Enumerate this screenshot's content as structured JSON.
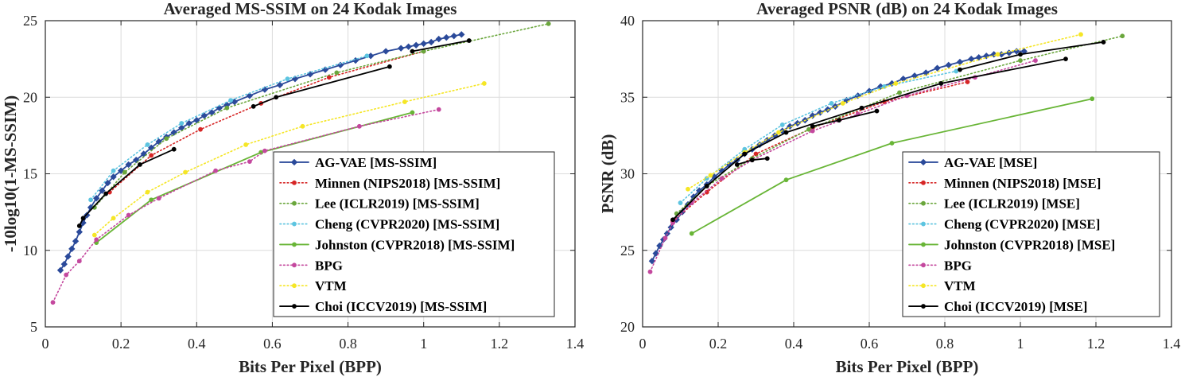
{
  "chart_data": [
    {
      "type": "line",
      "title": "Averaged MS-SSIM on 24 Kodak Images",
      "xlabel": "Bits Per Pixel (BPP)",
      "ylabel": "-10log10(1-MS-SSIM)",
      "xlim": [
        0,
        1.4
      ],
      "ylim": [
        5,
        25
      ],
      "xticks": [
        "0",
        "0.2",
        "0.4",
        "0.6",
        "0.8",
        "1",
        "1.2",
        "1.4"
      ],
      "yticks": [
        "5",
        "10",
        "15",
        "20",
        "25"
      ],
      "grid": true,
      "legend_position": "bottom-right",
      "series": [
        {
          "name": "AG-VAE [MS-SSIM]",
          "color": "#2b4a9a",
          "style": "solid",
          "marker": "diamond",
          "x": [
            0.04,
            0.05,
            0.06,
            0.07,
            0.08,
            0.09,
            0.1,
            0.11,
            0.12,
            0.135,
            0.15,
            0.165,
            0.18,
            0.2,
            0.22,
            0.24,
            0.26,
            0.28,
            0.3,
            0.32,
            0.34,
            0.36,
            0.38,
            0.4,
            0.42,
            0.44,
            0.46,
            0.48,
            0.5,
            0.54,
            0.58,
            0.62,
            0.66,
            0.7,
            0.74,
            0.78,
            0.82,
            0.86,
            0.9,
            0.94,
            0.96,
            0.98,
            1.0,
            1.02,
            1.04,
            1.06,
            1.08,
            1.1
          ],
          "y": [
            8.7,
            9.1,
            9.6,
            10.1,
            10.6,
            11.2,
            11.8,
            12.3,
            12.8,
            13.4,
            13.9,
            14.4,
            14.8,
            15.2,
            15.6,
            15.9,
            16.3,
            16.7,
            17.1,
            17.4,
            17.7,
            18.0,
            18.3,
            18.5,
            18.8,
            19.0,
            19.3,
            19.5,
            19.7,
            20.1,
            20.5,
            20.8,
            21.2,
            21.5,
            21.8,
            22.1,
            22.4,
            22.7,
            23.0,
            23.2,
            23.3,
            23.4,
            23.5,
            23.6,
            23.8,
            23.9,
            24.0,
            24.1
          ]
        },
        {
          "name": "Minnen (NIPS2018) [MS-SSIM]",
          "color": "#d62626",
          "style": "dotted",
          "marker": "circle",
          "x": [
            0.17,
            0.28,
            0.41,
            0.57,
            0.75,
            1.0
          ],
          "y": [
            13.8,
            16.2,
            17.9,
            19.6,
            21.3,
            23.0
          ]
        },
        {
          "name": "Lee (ICLR2019) [MS-SSIM]",
          "color": "#6aa63c",
          "style": "dotted",
          "marker": "circle",
          "x": [
            0.13,
            0.21,
            0.32,
            0.48,
            0.77,
            1.0,
            1.33
          ],
          "y": [
            12.8,
            15.1,
            17.3,
            19.3,
            21.6,
            23.0,
            24.8
          ]
        },
        {
          "name": "Cheng (CVPR2020) [MS-SSIM]",
          "color": "#5cc4e0",
          "style": "dotted",
          "marker": "circle",
          "x": [
            0.12,
            0.18,
            0.27,
            0.36,
            0.49,
            0.64,
            0.85
          ],
          "y": [
            13.3,
            15.2,
            16.9,
            18.3,
            19.8,
            21.2,
            22.7
          ]
        },
        {
          "name": "Johnston (CVPR2018) [MS-SSIM]",
          "color": "#68b536",
          "style": "solid",
          "marker": "circle",
          "x": [
            0.135,
            0.28,
            0.57,
            0.97
          ],
          "y": [
            10.5,
            13.3,
            16.4,
            19.0
          ]
        },
        {
          "name": "BPG",
          "color": "#c4489e",
          "style": "dotted",
          "marker": "circle",
          "x": [
            0.02,
            0.055,
            0.09,
            0.135,
            0.22,
            0.3,
            0.45,
            0.54,
            0.58,
            0.83,
            1.04
          ],
          "y": [
            6.6,
            8.4,
            9.3,
            10.7,
            12.3,
            13.4,
            15.2,
            15.8,
            16.5,
            18.1,
            19.2
          ]
        },
        {
          "name": "VTM",
          "color": "#f5e626",
          "style": "dotted",
          "marker": "circle",
          "x": [
            0.13,
            0.18,
            0.27,
            0.37,
            0.53,
            0.68,
            0.95,
            1.16
          ],
          "y": [
            11.0,
            12.1,
            13.8,
            15.1,
            16.9,
            18.1,
            19.7,
            20.9
          ]
        },
        {
          "name": "Choi (ICCV2019) [MS-SSIM]",
          "color": "#000000",
          "style": "solid",
          "marker": "circle",
          "x": [
            0.09,
            0.1,
            0.16,
            0.25,
            0.34
          ],
          "y": [
            11.6,
            12.1,
            13.7,
            15.6,
            16.6
          ]
        },
        {
          "name": "Choi (ICCV2019) [MS-SSIM]",
          "color": "#000000",
          "style": "solid",
          "marker": "circle",
          "x": [
            0.55,
            0.61,
            0.91
          ],
          "y": [
            19.4,
            20.0,
            22.0
          ]
        },
        {
          "name": "Choi (ICCV2019) [MS-SSIM]",
          "color": "#000000",
          "style": "solid",
          "marker": "circle",
          "x": [
            0.97,
            1.12
          ],
          "y": [
            23.0,
            23.7
          ]
        }
      ],
      "legend": [
        "AG-VAE [MS-SSIM]",
        "Minnen (NIPS2018) [MS-SSIM]",
        "Lee (ICLR2019) [MS-SSIM]",
        "Cheng (CVPR2020) [MS-SSIM]",
        "Johnston (CVPR2018) [MS-SSIM]",
        "BPG",
        "VTM",
        "Choi (ICCV2019) [MS-SSIM]"
      ]
    },
    {
      "type": "line",
      "title": "Averaged PSNR (dB) on 24 Kodak Images",
      "xlabel": "Bits Per Pixel (BPP)",
      "ylabel": "PSNR (dB)",
      "xlim": [
        0,
        1.4
      ],
      "ylim": [
        20,
        40
      ],
      "xticks": [
        "0",
        "0.2",
        "0.4",
        "0.6",
        "0.8",
        "1",
        "1.2",
        "1.4"
      ],
      "yticks": [
        "20",
        "25",
        "30",
        "35",
        "40"
      ],
      "grid": true,
      "legend_position": "bottom-right",
      "series": [
        {
          "name": "AG-VAE [MSE]",
          "color": "#2b4a9a",
          "style": "solid",
          "marker": "diamond",
          "x": [
            0.025,
            0.035,
            0.045,
            0.055,
            0.065,
            0.075,
            0.09,
            0.105,
            0.12,
            0.135,
            0.15,
            0.17,
            0.19,
            0.21,
            0.23,
            0.25,
            0.27,
            0.29,
            0.31,
            0.33,
            0.35,
            0.37,
            0.39,
            0.41,
            0.43,
            0.45,
            0.47,
            0.49,
            0.51,
            0.54,
            0.57,
            0.6,
            0.63,
            0.66,
            0.69,
            0.72,
            0.75,
            0.78,
            0.81,
            0.84,
            0.87,
            0.89,
            0.91,
            0.93,
            0.95,
            0.97,
            0.99,
            1.01
          ],
          "y": [
            24.3,
            24.8,
            25.3,
            25.7,
            26.1,
            26.5,
            27.0,
            27.5,
            28.0,
            28.5,
            28.9,
            29.3,
            29.8,
            30.2,
            30.6,
            30.9,
            31.3,
            31.6,
            31.9,
            32.2,
            32.5,
            32.8,
            33.1,
            33.3,
            33.5,
            33.8,
            34.0,
            34.2,
            34.4,
            34.8,
            35.1,
            35.4,
            35.7,
            35.9,
            36.2,
            36.4,
            36.6,
            36.9,
            37.1,
            37.3,
            37.5,
            37.6,
            37.7,
            37.8,
            37.8,
            37.9,
            38.0,
            38.0
          ]
        },
        {
          "name": "Minnen (NIPS2018) [MSE]",
          "color": "#d62626",
          "style": "dotted",
          "marker": "circle",
          "x": [
            0.08,
            0.17,
            0.3,
            0.45,
            0.64,
            0.86
          ],
          "y": [
            26.9,
            28.8,
            31.3,
            33.0,
            34.7,
            36.0
          ]
        },
        {
          "name": "Lee (ICLR2019) [MSE]",
          "color": "#6aa63c",
          "style": "dotted",
          "marker": "circle",
          "x": [
            0.09,
            0.17,
            0.29,
            0.44,
            0.68,
            1.0,
            1.27
          ],
          "y": [
            27.4,
            29.2,
            31.0,
            32.9,
            35.3,
            37.4,
            39.0
          ]
        },
        {
          "name": "Cheng (CVPR2020) [MSE]",
          "color": "#5cc4e0",
          "style": "dotted",
          "marker": "circle",
          "x": [
            0.1,
            0.17,
            0.27,
            0.37,
            0.5,
            0.64,
            0.83
          ],
          "y": [
            28.1,
            29.7,
            31.6,
            33.2,
            34.6,
            35.7,
            36.7
          ]
        },
        {
          "name": "Johnston (CVPR2018) [MSE]",
          "color": "#68b536",
          "style": "solid",
          "marker": "circle",
          "x": [
            0.13,
            0.38,
            0.66,
            1.19
          ],
          "y": [
            26.1,
            29.6,
            32.0,
            34.9
          ]
        },
        {
          "name": "BPG",
          "color": "#c4489e",
          "style": "dotted",
          "marker": "circle",
          "x": [
            0.02,
            0.06,
            0.08,
            0.13,
            0.21,
            0.29,
            0.45,
            0.57,
            0.7,
            0.88,
            1.04
          ],
          "y": [
            23.6,
            25.8,
            26.8,
            28.1,
            29.7,
            30.9,
            32.8,
            33.9,
            35.1,
            36.3,
            37.4
          ]
        },
        {
          "name": "VTM",
          "color": "#f5e626",
          "style": "dotted",
          "marker": "circle",
          "x": [
            0.12,
            0.18,
            0.27,
            0.36,
            0.53,
            0.67,
            0.94,
            1.16
          ],
          "y": [
            29.0,
            29.9,
            31.4,
            32.7,
            34.6,
            35.9,
            37.8,
            39.1
          ]
        },
        {
          "name": "Choi (ICCV2019) [MSE]",
          "color": "#000000",
          "style": "solid",
          "marker": "circle",
          "x": [
            0.08,
            0.17,
            0.27,
            0.38,
            0.58,
            0.79,
            1.12
          ],
          "y": [
            27.0,
            29.2,
            31.3,
            32.7,
            34.3,
            35.9,
            37.5
          ]
        },
        {
          "name": "Choi (ICCV2019) [MSE]",
          "color": "#000000",
          "style": "solid",
          "marker": "circle",
          "x": [
            0.25,
            0.29,
            0.33
          ],
          "y": [
            30.6,
            30.9,
            31.0
          ]
        },
        {
          "name": "Choi (ICCV2019) [MSE]",
          "color": "#000000",
          "style": "solid",
          "marker": "circle",
          "x": [
            0.45,
            0.52,
            0.62
          ],
          "y": [
            33.1,
            33.5,
            34.1
          ]
        },
        {
          "name": "Choi (ICCV2019) [MSE]",
          "color": "#000000",
          "style": "solid",
          "marker": "circle",
          "x": [
            0.84,
            1.0,
            1.22
          ],
          "y": [
            36.8,
            37.8,
            38.6
          ]
        }
      ],
      "legend": [
        "AG-VAE [MSE]",
        "Minnen (NIPS2018) [MSE]",
        "Lee (ICLR2019) [MSE]",
        "Cheng (CVPR2020) [MSE]",
        "Johnston (CVPR2018) [MSE]",
        "BPG",
        "VTM",
        "Choi (ICCV2019) [MSE]"
      ]
    }
  ]
}
